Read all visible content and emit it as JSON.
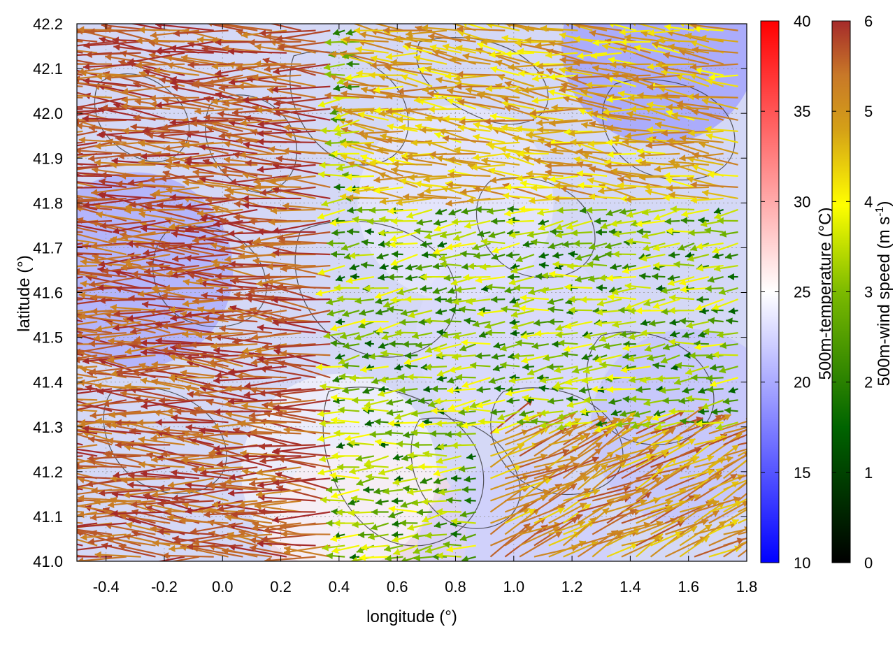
{
  "chart_data": {
    "type": "quiver",
    "xlabel": "longitude (°)",
    "ylabel": "latitude (°)",
    "xlim": [
      -0.5,
      1.8
    ],
    "ylim": [
      41.0,
      42.2
    ],
    "xticks": [
      "-0.4",
      "-0.2",
      "0.0",
      "0.2",
      "0.4",
      "0.6",
      "0.8",
      "1.0",
      "1.2",
      "1.4",
      "1.6",
      "1.8"
    ],
    "yticks": [
      "41.0",
      "41.1",
      "41.2",
      "41.3",
      "41.4",
      "41.5",
      "41.6",
      "41.7",
      "41.8",
      "41.9",
      "42.0",
      "42.1",
      "42.2"
    ],
    "grid": true,
    "temperature_colorbar": {
      "label_main": "500m-temperature (°C)",
      "range": [
        10,
        40
      ],
      "ticks": [
        "10",
        "15",
        "20",
        "25",
        "30",
        "35",
        "40"
      ],
      "colors": [
        "#0000ff",
        "#ffffff",
        "#ff0000"
      ]
    },
    "wind_colorbar": {
      "label_main": "500m-wind speed (m s",
      "label_sup": "-1",
      "label_end": ")",
      "range": [
        0,
        6
      ],
      "ticks": [
        "0",
        "1",
        "2",
        "3",
        "4",
        "5",
        "6"
      ],
      "colors": [
        "#000000",
        "#006400",
        "#7cba00",
        "#ffff00",
        "#d4a017",
        "#c87828",
        "#a52a2a"
      ]
    },
    "wind_regions": [
      {
        "region": "west",
        "lon_range": [
          -0.5,
          0.4
        ],
        "lat_range": [
          41.0,
          42.2
        ],
        "u": -1.0,
        "v": 0.05,
        "speed": 6.0
      },
      {
        "region": "northeast",
        "lon_range": [
          0.5,
          1.8
        ],
        "lat_range": [
          41.8,
          42.2
        ],
        "u": -0.9,
        "v": 0.1,
        "speed": 4.0
      },
      {
        "region": "east-central",
        "lon_range": [
          1.0,
          1.8
        ],
        "lat_range": [
          41.3,
          41.8
        ],
        "u": -0.8,
        "v": -0.1,
        "speed": 2.0
      },
      {
        "region": "southeast",
        "lon_range": [
          0.9,
          1.8
        ],
        "lat_range": [
          41.0,
          41.3
        ],
        "u": 0.8,
        "v": 0.4,
        "speed": 4.5
      }
    ],
    "temperature_field": [
      {
        "lon": -0.3,
        "lat": 41.65,
        "temp": 19
      },
      {
        "lon": 0.5,
        "lat": 41.05,
        "temp": 27
      },
      {
        "lon": 0.4,
        "lat": 41.2,
        "temp": 25
      },
      {
        "lon": 1.5,
        "lat": 42.15,
        "temp": 18
      },
      {
        "lon": 1.6,
        "lat": 41.3,
        "temp": 21
      },
      {
        "lon": 0.8,
        "lat": 41.8,
        "temp": 24
      },
      {
        "lon": 1.0,
        "lat": 41.0,
        "temp": 22
      },
      {
        "lon": 1.0,
        "lat": 41.5,
        "temp": 23
      }
    ]
  }
}
